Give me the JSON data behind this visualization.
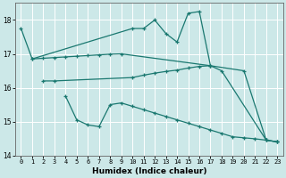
{
  "xlabel": "Humidex (Indice chaleur)",
  "xlim": [
    -0.5,
    23.5
  ],
  "ylim": [
    14,
    18.5
  ],
  "yticks": [
    14,
    15,
    16,
    17,
    18
  ],
  "xticks": [
    0,
    1,
    2,
    3,
    4,
    5,
    6,
    7,
    8,
    9,
    10,
    11,
    12,
    13,
    14,
    15,
    16,
    17,
    18,
    19,
    20,
    21,
    22,
    23
  ],
  "bg_color": "#cce8e8",
  "grid_color": "#aacccc",
  "line_color": "#1a7870",
  "series": [
    {
      "x": [
        0,
        1,
        10,
        11,
        12,
        13,
        14,
        15,
        16,
        17
      ],
      "y": [
        17.75,
        16.85,
        17.75,
        17.75,
        18.0,
        17.6,
        17.35,
        18.2,
        18.25,
        16.65
      ]
    },
    {
      "x": [
        1,
        2,
        3,
        4,
        5,
        6,
        7,
        8,
        9,
        17,
        18,
        22,
        23
      ],
      "y": [
        16.85,
        16.87,
        16.89,
        16.91,
        16.93,
        16.95,
        16.97,
        16.99,
        17.0,
        16.65,
        16.5,
        14.45,
        14.4
      ]
    },
    {
      "x": [
        2,
        3,
        10,
        11,
        12,
        13,
        14,
        15,
        16,
        17,
        20,
        22,
        23
      ],
      "y": [
        16.2,
        16.2,
        16.3,
        16.37,
        16.43,
        16.48,
        16.52,
        16.58,
        16.63,
        16.65,
        16.5,
        14.45,
        14.4
      ]
    },
    {
      "x": [
        4,
        5,
        6,
        7,
        8,
        9,
        10,
        11,
        12,
        13,
        14,
        15,
        16,
        17,
        18,
        19,
        20,
        21,
        22,
        23
      ],
      "y": [
        15.75,
        15.05,
        14.9,
        14.85,
        15.5,
        15.55,
        15.45,
        15.35,
        15.25,
        15.15,
        15.05,
        14.95,
        14.85,
        14.75,
        14.65,
        14.55,
        14.52,
        14.49,
        14.45,
        14.4
      ]
    }
  ]
}
